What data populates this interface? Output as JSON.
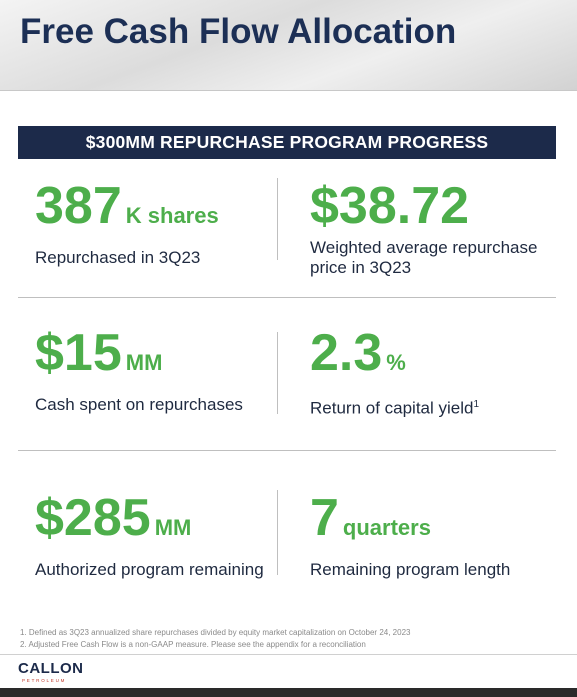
{
  "header": {
    "title": "Free Cash Flow Allocation"
  },
  "banner": "$300MM REPURCHASE PROGRAM PROGRESS",
  "metrics": [
    {
      "value": "387",
      "unit": "K shares",
      "description": "Repurchased in 3Q23"
    },
    {
      "value": "$38.72",
      "description": "Weighted average repurchase price in 3Q23"
    },
    {
      "value": "$15",
      "unit": "MM",
      "description": "Cash spent on repurchases"
    },
    {
      "value": "2.3",
      "unit": "%",
      "description": "Return of capital yield",
      "footnote_ref": "1"
    },
    {
      "value": "$285",
      "unit": "MM",
      "description": "Authorized program remaining"
    },
    {
      "value": "7",
      "unit": "quarters",
      "description": "Remaining program length"
    }
  ],
  "footnotes": [
    "1. Defined as 3Q23 annualized share repurchases divided by equity market capitalization on October 24, 2023",
    "2. Adjusted Free Cash Flow is a non-GAAP measure. Please see the appendix for a reconciliation"
  ],
  "logo": {
    "name": "CALLON",
    "subtitle": "PETROLEUM"
  }
}
